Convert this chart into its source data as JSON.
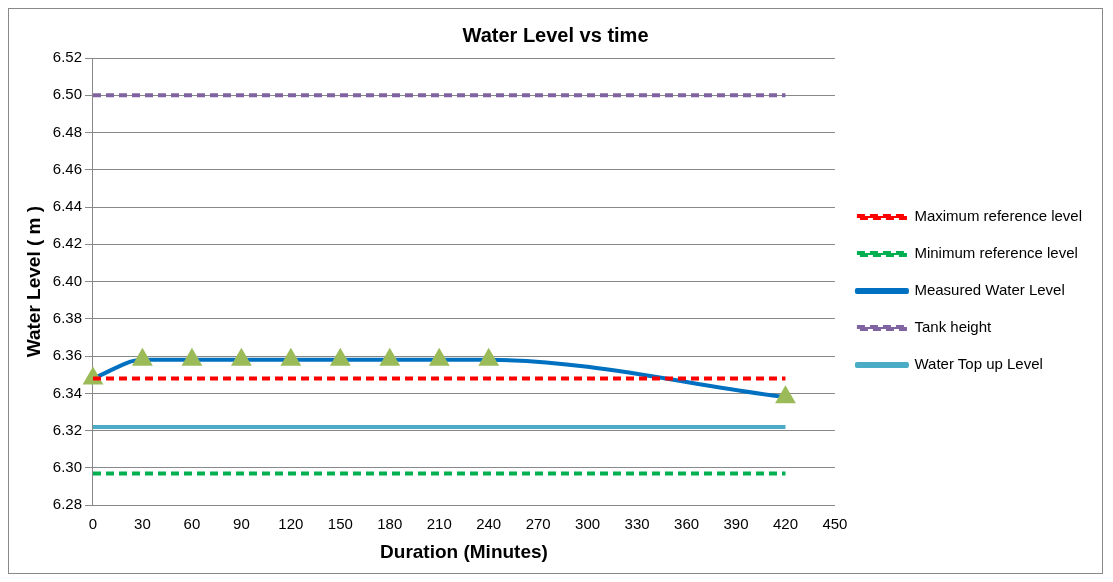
{
  "chart_data": {
    "type": "line",
    "title": "Water Level vs time",
    "xlabel": "Duration (Minutes)",
    "ylabel": "Water Level ( m )",
    "xlim": [
      0,
      450
    ],
    "xticks": [
      0,
      30,
      60,
      90,
      120,
      150,
      180,
      210,
      240,
      270,
      300,
      330,
      360,
      390,
      420,
      450
    ],
    "ylim": [
      6.28,
      6.52
    ],
    "yticks": [
      6.28,
      {
        "value": 6.3,
        "label": "6.30"
      },
      6.32,
      6.34,
      6.36,
      6.38,
      {
        "value": 6.4,
        "label": "6.40"
      },
      6.42,
      6.44,
      6.46,
      6.48,
      {
        "value": 6.5,
        "label": "6.50"
      },
      6.52
    ],
    "grid": "y",
    "legend": "right",
    "series": [
      {
        "name": "Maximum reference level",
        "color": "#ff0000",
        "line_style": "dashed",
        "marker": "none",
        "x": [
          0,
          420
        ],
        "values": [
          6.348,
          6.348
        ]
      },
      {
        "name": "Minimum reference level",
        "color": "#00b050",
        "line_style": "dashed",
        "marker": "none",
        "x": [
          0,
          420
        ],
        "values": [
          6.297,
          6.297
        ]
      },
      {
        "name": "Measured Water Level",
        "color": "#0070c0",
        "line_style": "solid",
        "marker": "triangle",
        "colors": [
          "#9bbb59",
          "#9bbb59",
          "#9bbb59",
          "#9bbb59",
          "#9bbb59",
          "#9bbb59",
          "#9bbb59",
          "#9bbb59",
          "#9bbb59",
          "#9bbb59"
        ],
        "x": [
          0,
          30,
          60,
          90,
          120,
          150,
          180,
          210,
          240,
          420
        ],
        "values": [
          6.348,
          6.358,
          6.358,
          6.358,
          6.358,
          6.358,
          6.358,
          6.358,
          6.358,
          6.338
        ]
      },
      {
        "name": "Tank height",
        "color": "#8064a2",
        "line_style": "dashed",
        "marker": "none",
        "x": [
          0,
          420
        ],
        "values": [
          6.5,
          6.5
        ]
      },
      {
        "name": "Water Top up Level",
        "color": "#4bacc6",
        "line_style": "solid",
        "marker": "none",
        "x": [
          0,
          420
        ],
        "values": [
          6.322,
          6.322
        ]
      }
    ]
  }
}
